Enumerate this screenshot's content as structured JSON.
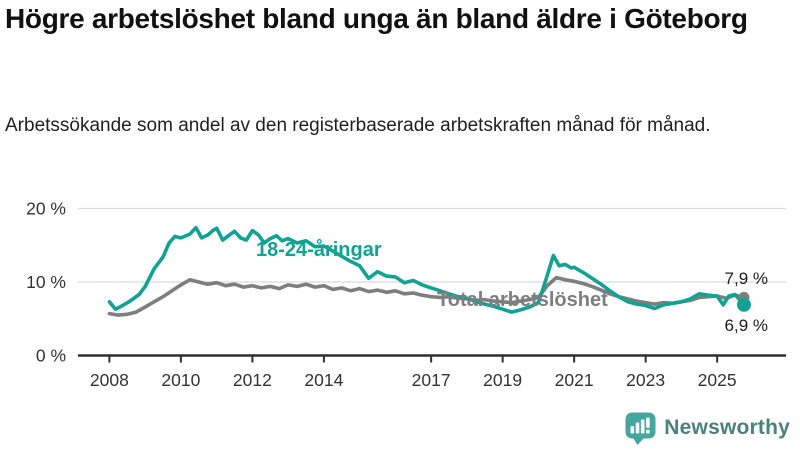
{
  "header": {
    "title": "Högre arbetslöshet bland unga än bland äldre i Göteborg",
    "subtitle": "Arbetssökande som andel av den registerbaserade arbetskraften månad för månad."
  },
  "chart_data": {
    "type": "line",
    "title": "Högre arbetslöshet bland unga än bland äldre i Göteborg",
    "subtitle": "Arbetssökande som andel av den registerbaserade arbetskraften månad för månad.",
    "xlabel": "",
    "ylabel": "",
    "ylim": [
      0,
      20
    ],
    "xlim": [
      2007.1,
      2026.9
    ],
    "grid": "horizontal",
    "legend_position": "inline-labels",
    "x_tick_labels": [
      "2008",
      "2010",
      "2012",
      "2014",
      "2017",
      "2019",
      "2021",
      "2023",
      "2025"
    ],
    "x_tick_years": [
      2008,
      2010,
      2012,
      2014,
      2017,
      2019,
      2021,
      2023,
      2025
    ],
    "y_tick_labels": [
      "0 %",
      "10 %",
      "20 %"
    ],
    "y_tick_values": [
      0,
      10,
      20
    ],
    "series": [
      {
        "name": "Total arbetslöshet",
        "color": "#7e7e7e",
        "end_label": "7,9 %",
        "end_value": 7.9,
        "points": [
          [
            2008.0,
            5.7
          ],
          [
            2008.25,
            5.5
          ],
          [
            2008.5,
            5.6
          ],
          [
            2008.75,
            5.9
          ],
          [
            2009.0,
            6.6
          ],
          [
            2009.25,
            7.3
          ],
          [
            2009.5,
            8.0
          ],
          [
            2009.75,
            8.8
          ],
          [
            2010.0,
            9.6
          ],
          [
            2010.25,
            10.3
          ],
          [
            2010.5,
            10.0
          ],
          [
            2010.75,
            9.7
          ],
          [
            2011.0,
            9.9
          ],
          [
            2011.25,
            9.5
          ],
          [
            2011.5,
            9.7
          ],
          [
            2011.75,
            9.3
          ],
          [
            2012.0,
            9.5
          ],
          [
            2012.25,
            9.2
          ],
          [
            2012.5,
            9.4
          ],
          [
            2012.75,
            9.1
          ],
          [
            2013.0,
            9.6
          ],
          [
            2013.25,
            9.4
          ],
          [
            2013.5,
            9.7
          ],
          [
            2013.75,
            9.3
          ],
          [
            2014.0,
            9.5
          ],
          [
            2014.25,
            9.0
          ],
          [
            2014.5,
            9.2
          ],
          [
            2014.75,
            8.8
          ],
          [
            2015.0,
            9.1
          ],
          [
            2015.25,
            8.7
          ],
          [
            2015.5,
            8.9
          ],
          [
            2015.75,
            8.6
          ],
          [
            2016.0,
            8.8
          ],
          [
            2016.25,
            8.4
          ],
          [
            2016.5,
            8.5
          ],
          [
            2016.75,
            8.2
          ],
          [
            2017.0,
            8.0
          ],
          [
            2017.25,
            7.9
          ],
          [
            2017.5,
            8.0
          ],
          [
            2017.75,
            7.8
          ],
          [
            2018.0,
            7.7
          ],
          [
            2018.25,
            7.5
          ],
          [
            2018.5,
            7.6
          ],
          [
            2018.75,
            7.4
          ],
          [
            2019.0,
            7.3
          ],
          [
            2019.25,
            7.2
          ],
          [
            2019.5,
            7.4
          ],
          [
            2019.75,
            7.6
          ],
          [
            2020.0,
            7.9
          ],
          [
            2020.25,
            9.5
          ],
          [
            2020.5,
            10.6
          ],
          [
            2020.75,
            10.3
          ],
          [
            2021.0,
            10.1
          ],
          [
            2021.25,
            9.8
          ],
          [
            2021.5,
            9.4
          ],
          [
            2021.75,
            8.9
          ],
          [
            2022.0,
            8.4
          ],
          [
            2022.25,
            8.0
          ],
          [
            2022.5,
            7.7
          ],
          [
            2022.75,
            7.4
          ],
          [
            2023.0,
            7.2
          ],
          [
            2023.25,
            7.0
          ],
          [
            2023.5,
            7.2
          ],
          [
            2023.75,
            7.1
          ],
          [
            2024.0,
            7.3
          ],
          [
            2024.25,
            7.5
          ],
          [
            2024.5,
            7.9
          ],
          [
            2024.75,
            8.0
          ],
          [
            2025.0,
            8.1
          ],
          [
            2025.25,
            7.8
          ],
          [
            2025.5,
            8.2
          ],
          [
            2025.75,
            7.9
          ]
        ]
      },
      {
        "name": "18-24-åringar",
        "color": "#12a294",
        "end_label": "6,9 %",
        "end_value": 6.9,
        "points": [
          [
            2008.0,
            7.3
          ],
          [
            2008.17,
            6.3
          ],
          [
            2008.33,
            6.7
          ],
          [
            2008.58,
            7.4
          ],
          [
            2008.83,
            8.3
          ],
          [
            2009.0,
            9.4
          ],
          [
            2009.25,
            11.8
          ],
          [
            2009.5,
            13.4
          ],
          [
            2009.67,
            15.3
          ],
          [
            2009.83,
            16.2
          ],
          [
            2010.0,
            16.0
          ],
          [
            2010.25,
            16.5
          ],
          [
            2010.42,
            17.4
          ],
          [
            2010.58,
            16.0
          ],
          [
            2010.75,
            16.4
          ],
          [
            2010.92,
            17.1
          ],
          [
            2011.0,
            17.3
          ],
          [
            2011.17,
            15.7
          ],
          [
            2011.33,
            16.3
          ],
          [
            2011.5,
            16.9
          ],
          [
            2011.67,
            16.0
          ],
          [
            2011.83,
            15.7
          ],
          [
            2012.0,
            17.0
          ],
          [
            2012.17,
            16.4
          ],
          [
            2012.33,
            15.3
          ],
          [
            2012.5,
            15.9
          ],
          [
            2012.67,
            16.3
          ],
          [
            2012.83,
            15.6
          ],
          [
            2013.0,
            15.9
          ],
          [
            2013.25,
            15.3
          ],
          [
            2013.5,
            15.6
          ],
          [
            2013.75,
            14.8
          ],
          [
            2014.0,
            14.9
          ],
          [
            2014.25,
            14.2
          ],
          [
            2014.5,
            13.5
          ],
          [
            2014.75,
            12.8
          ],
          [
            2015.0,
            12.2
          ],
          [
            2015.25,
            10.5
          ],
          [
            2015.5,
            11.4
          ],
          [
            2015.75,
            10.8
          ],
          [
            2016.0,
            10.7
          ],
          [
            2016.25,
            9.9
          ],
          [
            2016.5,
            10.2
          ],
          [
            2016.75,
            9.6
          ],
          [
            2017.0,
            9.2
          ],
          [
            2017.25,
            8.8
          ],
          [
            2017.5,
            8.4
          ],
          [
            2017.75,
            8.0
          ],
          [
            2018.0,
            7.8
          ],
          [
            2018.25,
            7.3
          ],
          [
            2018.5,
            7.0
          ],
          [
            2018.75,
            6.7
          ],
          [
            2019.0,
            6.3
          ],
          [
            2019.25,
            5.9
          ],
          [
            2019.5,
            6.2
          ],
          [
            2019.75,
            6.6
          ],
          [
            2020.0,
            7.2
          ],
          [
            2020.17,
            9.7
          ],
          [
            2020.42,
            13.6
          ],
          [
            2020.58,
            12.2
          ],
          [
            2020.75,
            12.4
          ],
          [
            2020.92,
            11.9
          ],
          [
            2021.0,
            12.0
          ],
          [
            2021.25,
            11.3
          ],
          [
            2021.5,
            10.5
          ],
          [
            2021.75,
            9.7
          ],
          [
            2022.0,
            8.8
          ],
          [
            2022.25,
            8.0
          ],
          [
            2022.5,
            7.3
          ],
          [
            2022.75,
            7.0
          ],
          [
            2023.0,
            6.8
          ],
          [
            2023.25,
            6.4
          ],
          [
            2023.5,
            6.9
          ],
          [
            2023.75,
            7.1
          ],
          [
            2024.0,
            7.3
          ],
          [
            2024.25,
            7.7
          ],
          [
            2024.5,
            8.4
          ],
          [
            2024.75,
            8.2
          ],
          [
            2025.0,
            8.1
          ],
          [
            2025.17,
            6.9
          ],
          [
            2025.33,
            8.1
          ],
          [
            2025.5,
            8.3
          ],
          [
            2025.75,
            6.9
          ]
        ]
      }
    ]
  },
  "colors": {
    "teal": "#12a294",
    "gray": "#7e7e7e",
    "grid": "#d9d9d9",
    "axis": "#2f2f2f",
    "tick_text": "#333333"
  },
  "footer": {
    "brand": "Newsworthy"
  }
}
